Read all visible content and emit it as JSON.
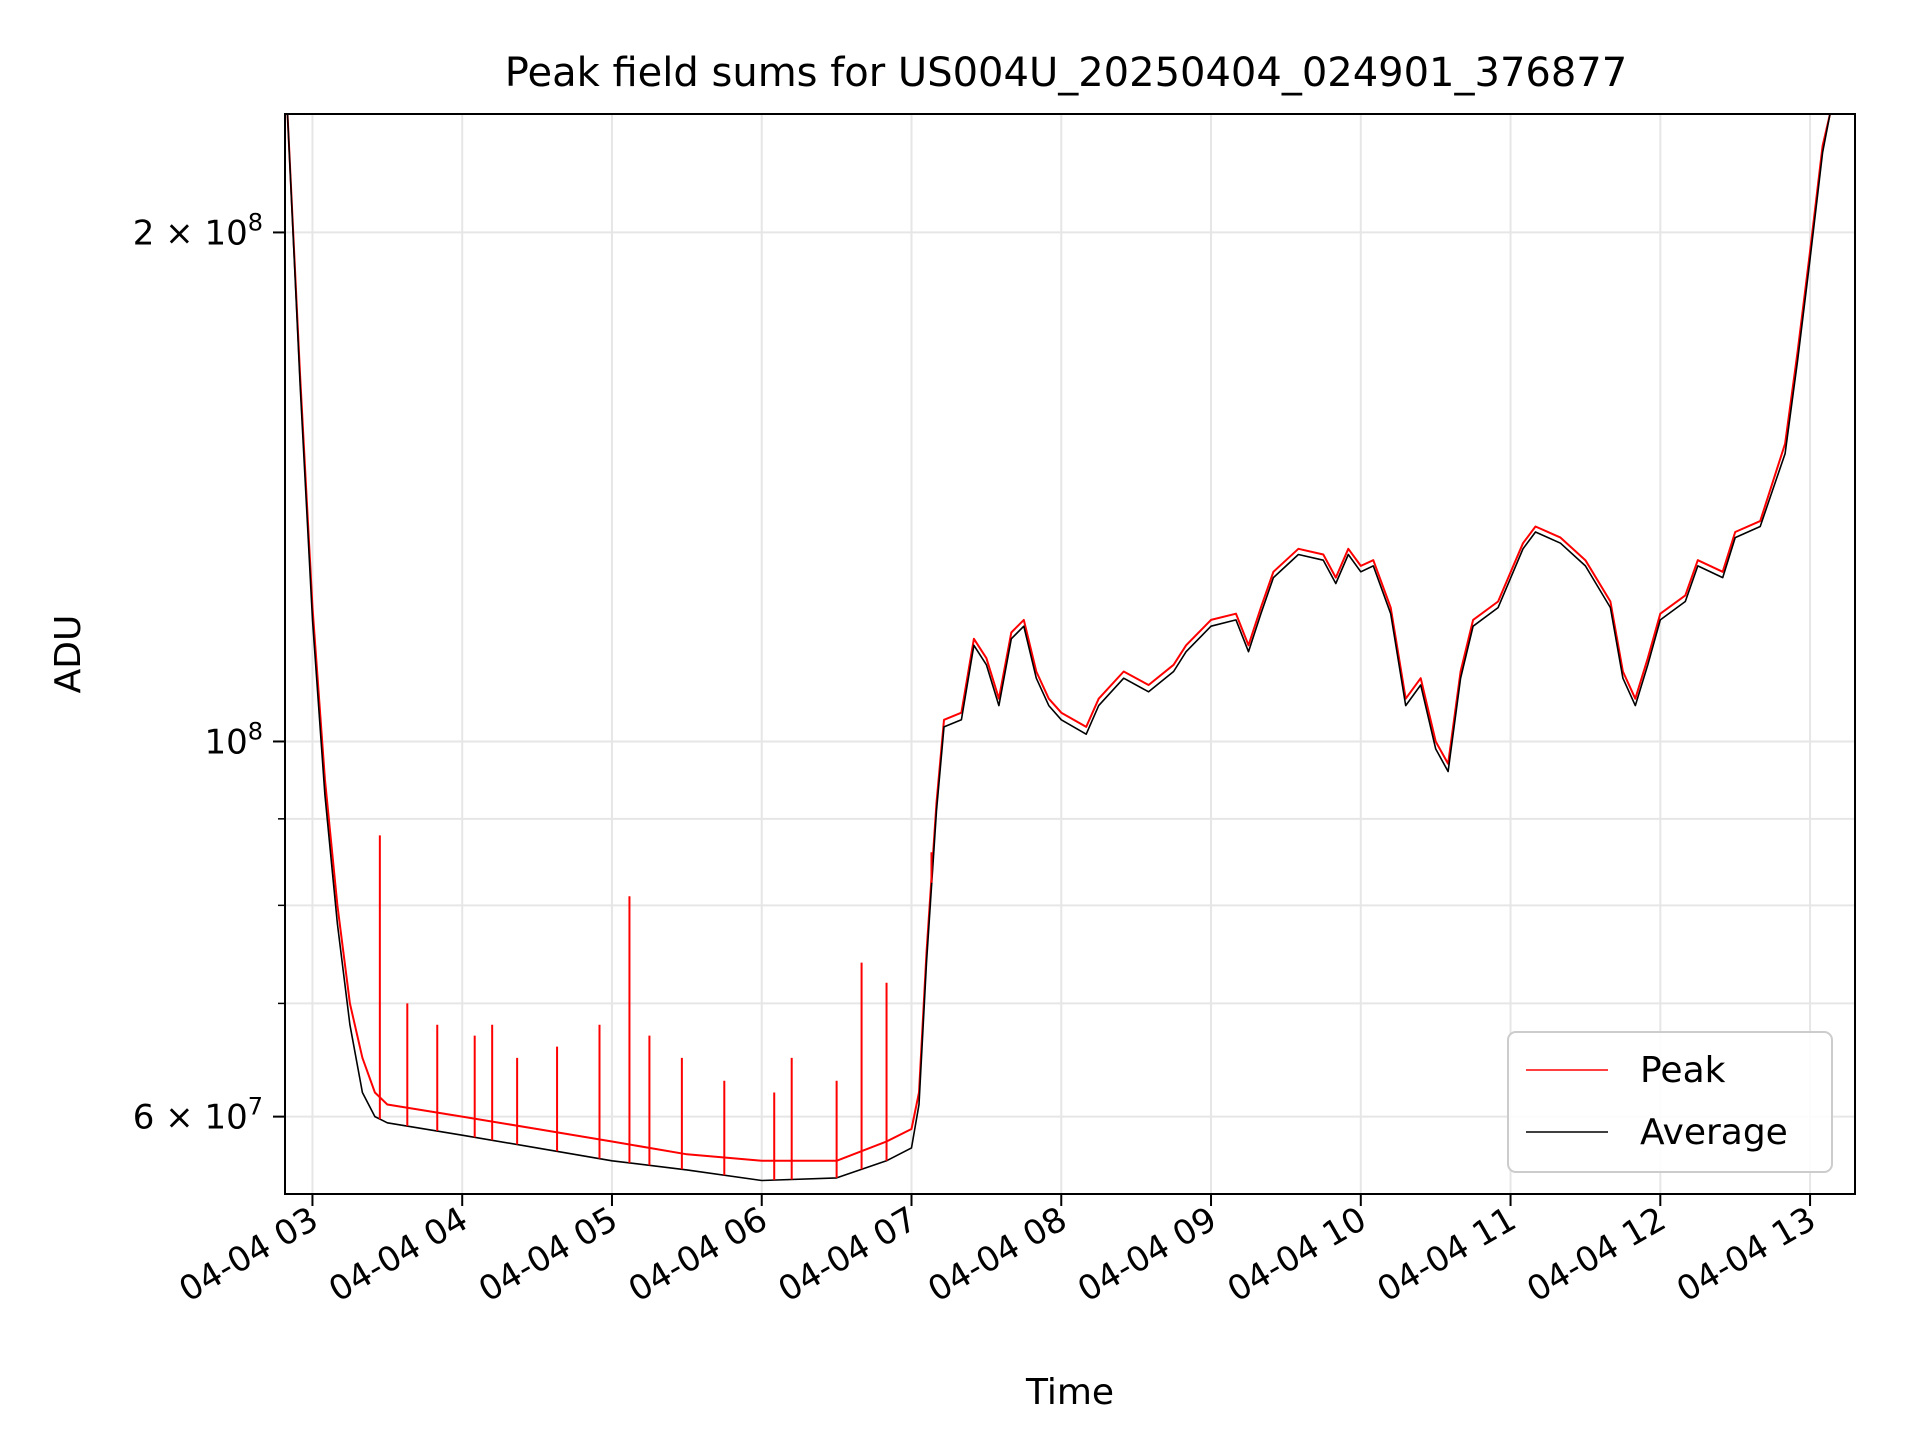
{
  "chart_data": {
    "type": "line",
    "title": "Peak field sums for US004U_20250404_024901_376877",
    "xlabel": "Time",
    "ylabel": "ADU",
    "yscale": "log",
    "ylim": [
      54000000,
      235000000
    ],
    "xlim": [
      "2025-04-04 02:49",
      "2025-04-04 13:18"
    ],
    "grid": true,
    "legend_position": "lower-right",
    "x_ticks": [
      {
        "value": "2025-04-04 03:00",
        "label": "04-04 03"
      },
      {
        "value": "2025-04-04 04:00",
        "label": "04-04 04"
      },
      {
        "value": "2025-04-04 05:00",
        "label": "04-04 05"
      },
      {
        "value": "2025-04-04 06:00",
        "label": "04-04 06"
      },
      {
        "value": "2025-04-04 07:00",
        "label": "04-04 07"
      },
      {
        "value": "2025-04-04 08:00",
        "label": "04-04 08"
      },
      {
        "value": "2025-04-04 09:00",
        "label": "04-04 09"
      },
      {
        "value": "2025-04-04 10:00",
        "label": "04-04 10"
      },
      {
        "value": "2025-04-04 11:00",
        "label": "04-04 11"
      },
      {
        "value": "2025-04-04 12:00",
        "label": "04-04 12"
      },
      {
        "value": "2025-04-04 13:00",
        "label": "04-04 13"
      }
    ],
    "y_ticks_major": [
      {
        "value": 60000000,
        "mantissa": "6",
        "exponent": "7"
      },
      {
        "value": 100000000,
        "mantissa": "",
        "exponent": "8"
      },
      {
        "value": 200000000,
        "mantissa": "2",
        "exponent": "8"
      }
    ],
    "y_ticks_minor": [
      70000000,
      80000000,
      90000000
    ],
    "series": [
      {
        "name": "Peak",
        "color": "#ff0000",
        "points": [
          [
            "2025-04-04 02:50",
            235000000
          ],
          [
            "2025-04-04 02:55",
            165000000
          ],
          [
            "2025-04-04 03:00",
            120000000
          ],
          [
            "2025-04-04 03:05",
            95000000
          ],
          [
            "2025-04-04 03:10",
            80000000
          ],
          [
            "2025-04-04 03:15",
            70000000
          ],
          [
            "2025-04-04 03:20",
            65000000
          ],
          [
            "2025-04-04 03:25",
            62000000
          ],
          [
            "2025-04-04 03:30",
            61000000
          ],
          [
            "2025-04-04 04:00",
            60000000
          ],
          [
            "2025-04-04 04:30",
            59000000
          ],
          [
            "2025-04-04 05:00",
            58000000
          ],
          [
            "2025-04-04 05:30",
            57000000
          ],
          [
            "2025-04-04 06:00",
            56500000
          ],
          [
            "2025-04-04 06:30",
            56500000
          ],
          [
            "2025-04-04 06:50",
            58000000
          ],
          [
            "2025-04-04 07:00",
            59000000
          ],
          [
            "2025-04-04 07:03",
            62000000
          ],
          [
            "2025-04-04 07:06",
            75000000
          ],
          [
            "2025-04-04 07:10",
            92000000
          ],
          [
            "2025-04-04 07:13",
            103000000
          ],
          [
            "2025-04-04 07:20",
            104000000
          ],
          [
            "2025-04-04 07:25",
            115000000
          ],
          [
            "2025-04-04 07:30",
            112000000
          ],
          [
            "2025-04-04 07:35",
            106000000
          ],
          [
            "2025-04-04 07:40",
            116000000
          ],
          [
            "2025-04-04 07:45",
            118000000
          ],
          [
            "2025-04-04 07:50",
            110000000
          ],
          [
            "2025-04-04 07:55",
            106000000
          ],
          [
            "2025-04-04 08:00",
            104000000
          ],
          [
            "2025-04-04 08:10",
            102000000
          ],
          [
            "2025-04-04 08:15",
            106000000
          ],
          [
            "2025-04-04 08:25",
            110000000
          ],
          [
            "2025-04-04 08:35",
            108000000
          ],
          [
            "2025-04-04 08:45",
            111000000
          ],
          [
            "2025-04-04 08:50",
            114000000
          ],
          [
            "2025-04-04 09:00",
            118000000
          ],
          [
            "2025-04-04 09:10",
            119000000
          ],
          [
            "2025-04-04 09:15",
            114000000
          ],
          [
            "2025-04-04 09:20",
            120000000
          ],
          [
            "2025-04-04 09:25",
            126000000
          ],
          [
            "2025-04-04 09:35",
            130000000
          ],
          [
            "2025-04-04 09:45",
            129000000
          ],
          [
            "2025-04-04 09:50",
            125000000
          ],
          [
            "2025-04-04 09:55",
            130000000
          ],
          [
            "2025-04-04 10:00",
            127000000
          ],
          [
            "2025-04-04 10:05",
            128000000
          ],
          [
            "2025-04-04 10:12",
            120000000
          ],
          [
            "2025-04-04 10:18",
            106000000
          ],
          [
            "2025-04-04 10:24",
            109000000
          ],
          [
            "2025-04-04 10:30",
            100000000
          ],
          [
            "2025-04-04 10:35",
            97000000
          ],
          [
            "2025-04-04 10:40",
            110000000
          ],
          [
            "2025-04-04 10:45",
            118000000
          ],
          [
            "2025-04-04 10:55",
            121000000
          ],
          [
            "2025-04-04 11:05",
            131000000
          ],
          [
            "2025-04-04 11:10",
            134000000
          ],
          [
            "2025-04-04 11:20",
            132000000
          ],
          [
            "2025-04-04 11:30",
            128000000
          ],
          [
            "2025-04-04 11:40",
            121000000
          ],
          [
            "2025-04-04 11:45",
            110000000
          ],
          [
            "2025-04-04 11:50",
            106000000
          ],
          [
            "2025-04-04 11:55",
            112000000
          ],
          [
            "2025-04-04 12:00",
            119000000
          ],
          [
            "2025-04-04 12:10",
            122000000
          ],
          [
            "2025-04-04 12:15",
            128000000
          ],
          [
            "2025-04-04 12:25",
            126000000
          ],
          [
            "2025-04-04 12:30",
            133000000
          ],
          [
            "2025-04-04 12:40",
            135000000
          ],
          [
            "2025-04-04 12:50",
            150000000
          ],
          [
            "2025-04-04 12:55",
            170000000
          ],
          [
            "2025-04-04 13:00",
            195000000
          ],
          [
            "2025-04-04 13:05",
            225000000
          ],
          [
            "2025-04-04 13:08",
            235000000
          ]
        ]
      },
      {
        "name": "Average",
        "color": "#000000",
        "points": [
          [
            "2025-04-04 02:50",
            235000000
          ],
          [
            "2025-04-04 02:55",
            163000000
          ],
          [
            "2025-04-04 03:00",
            118000000
          ],
          [
            "2025-04-04 03:05",
            93000000
          ],
          [
            "2025-04-04 03:10",
            78000000
          ],
          [
            "2025-04-04 03:15",
            68000000
          ],
          [
            "2025-04-04 03:20",
            62000000
          ],
          [
            "2025-04-04 03:25",
            60000000
          ],
          [
            "2025-04-04 03:30",
            59500000
          ],
          [
            "2025-04-04 04:00",
            58500000
          ],
          [
            "2025-04-04 04:30",
            57500000
          ],
          [
            "2025-04-04 05:00",
            56500000
          ],
          [
            "2025-04-04 05:30",
            55800000
          ],
          [
            "2025-04-04 06:00",
            55000000
          ],
          [
            "2025-04-04 06:30",
            55200000
          ],
          [
            "2025-04-04 06:50",
            56500000
          ],
          [
            "2025-04-04 07:00",
            57500000
          ],
          [
            "2025-04-04 07:03",
            61000000
          ],
          [
            "2025-04-04 07:06",
            74000000
          ],
          [
            "2025-04-04 07:10",
            91000000
          ],
          [
            "2025-04-04 07:13",
            102000000
          ],
          [
            "2025-04-04 07:20",
            103000000
          ],
          [
            "2025-04-04 07:25",
            114000000
          ],
          [
            "2025-04-04 07:30",
            111000000
          ],
          [
            "2025-04-04 07:35",
            105000000
          ],
          [
            "2025-04-04 07:40",
            115000000
          ],
          [
            "2025-04-04 07:45",
            117000000
          ],
          [
            "2025-04-04 07:50",
            109000000
          ],
          [
            "2025-04-04 07:55",
            105000000
          ],
          [
            "2025-04-04 08:00",
            103000000
          ],
          [
            "2025-04-04 08:10",
            101000000
          ],
          [
            "2025-04-04 08:15",
            105000000
          ],
          [
            "2025-04-04 08:25",
            109000000
          ],
          [
            "2025-04-04 08:35",
            107000000
          ],
          [
            "2025-04-04 08:45",
            110000000
          ],
          [
            "2025-04-04 08:50",
            113000000
          ],
          [
            "2025-04-04 09:00",
            117000000
          ],
          [
            "2025-04-04 09:10",
            118000000
          ],
          [
            "2025-04-04 09:15",
            113000000
          ],
          [
            "2025-04-04 09:20",
            119000000
          ],
          [
            "2025-04-04 09:25",
            125000000
          ],
          [
            "2025-04-04 09:35",
            129000000
          ],
          [
            "2025-04-04 09:45",
            128000000
          ],
          [
            "2025-04-04 09:50",
            124000000
          ],
          [
            "2025-04-04 09:55",
            129000000
          ],
          [
            "2025-04-04 10:00",
            126000000
          ],
          [
            "2025-04-04 10:05",
            127000000
          ],
          [
            "2025-04-04 10:12",
            119000000
          ],
          [
            "2025-04-04 10:18",
            105000000
          ],
          [
            "2025-04-04 10:24",
            108000000
          ],
          [
            "2025-04-04 10:30",
            99000000
          ],
          [
            "2025-04-04 10:35",
            96000000
          ],
          [
            "2025-04-04 10:40",
            109000000
          ],
          [
            "2025-04-04 10:45",
            117000000
          ],
          [
            "2025-04-04 10:55",
            120000000
          ],
          [
            "2025-04-04 11:05",
            130000000
          ],
          [
            "2025-04-04 11:10",
            133000000
          ],
          [
            "2025-04-04 11:20",
            131000000
          ],
          [
            "2025-04-04 11:30",
            127000000
          ],
          [
            "2025-04-04 11:40",
            120000000
          ],
          [
            "2025-04-04 11:45",
            109000000
          ],
          [
            "2025-04-04 11:50",
            105000000
          ],
          [
            "2025-04-04 11:55",
            111000000
          ],
          [
            "2025-04-04 12:00",
            118000000
          ],
          [
            "2025-04-04 12:10",
            121000000
          ],
          [
            "2025-04-04 12:15",
            127000000
          ],
          [
            "2025-04-04 12:25",
            125000000
          ],
          [
            "2025-04-04 12:30",
            132000000
          ],
          [
            "2025-04-04 12:40",
            134000000
          ],
          [
            "2025-04-04 12:50",
            148000000
          ],
          [
            "2025-04-04 12:55",
            168000000
          ],
          [
            "2025-04-04 13:00",
            193000000
          ],
          [
            "2025-04-04 13:05",
            223000000
          ],
          [
            "2025-04-04 13:08",
            235000000
          ]
        ]
      }
    ],
    "peak_spikes": [
      [
        "2025-04-04 03:27",
        88000000
      ],
      [
        "2025-04-04 03:38",
        70000000
      ],
      [
        "2025-04-04 03:50",
        68000000
      ],
      [
        "2025-04-04 04:05",
        67000000
      ],
      [
        "2025-04-04 04:12",
        68000000
      ],
      [
        "2025-04-04 04:22",
        65000000
      ],
      [
        "2025-04-04 04:38",
        66000000
      ],
      [
        "2025-04-04 04:55",
        68000000
      ],
      [
        "2025-04-04 05:07",
        81000000
      ],
      [
        "2025-04-04 05:15",
        67000000
      ],
      [
        "2025-04-04 05:28",
        65000000
      ],
      [
        "2025-04-04 05:45",
        63000000
      ],
      [
        "2025-04-04 06:05",
        62000000
      ],
      [
        "2025-04-04 06:12",
        65000000
      ],
      [
        "2025-04-04 06:30",
        63000000
      ],
      [
        "2025-04-04 06:40",
        74000000
      ],
      [
        "2025-04-04 06:50",
        72000000
      ],
      [
        "2025-04-04 07:08",
        86000000
      ]
    ],
    "legend": [
      {
        "label": "Peak",
        "color": "#ff0000"
      },
      {
        "label": "Average",
        "color": "#000000"
      }
    ]
  }
}
